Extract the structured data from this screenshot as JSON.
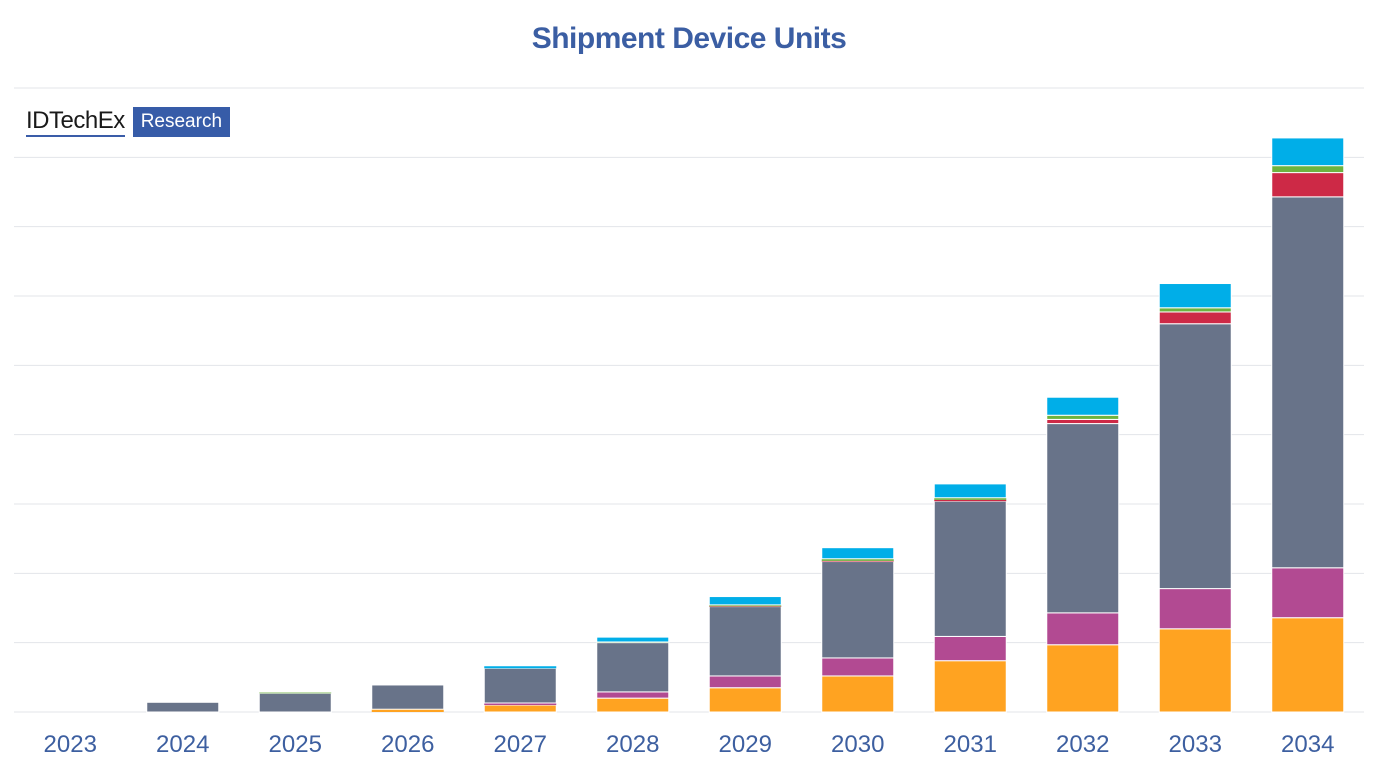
{
  "chart_data": {
    "type": "bar",
    "stacked": true,
    "title": "Shipment Device Units",
    "xlabel": "",
    "ylabel": "",
    "y_tick_labels_shown": false,
    "y_units_note": "no y-axis values printed; values read in gridline intervals",
    "ylim": [
      0,
      9
    ],
    "grid": true,
    "legend": "none",
    "categories": [
      "2023",
      "2024",
      "2025",
      "2026",
      "2027",
      "2028",
      "2029",
      "2030",
      "2031",
      "2032",
      "2033",
      "2034"
    ],
    "series": [
      {
        "color": "#ffa321",
        "values": [
          0,
          0,
          0,
          0.04,
          0.1,
          0.2,
          0.35,
          0.52,
          0.74,
          0.97,
          1.2,
          1.36
        ]
      },
      {
        "color": "#b24a92",
        "values": [
          0,
          0,
          0,
          0,
          0.03,
          0.09,
          0.17,
          0.26,
          0.35,
          0.46,
          0.58,
          0.72
        ]
      },
      {
        "color": "#687389",
        "values": [
          0,
          0.14,
          0.27,
          0.35,
          0.5,
          0.71,
          1.0,
          1.39,
          1.95,
          2.73,
          3.82,
          5.35
        ]
      },
      {
        "color": "#cd2946",
        "values": [
          0,
          0,
          0,
          0,
          0,
          0,
          0.005,
          0.01,
          0.02,
          0.06,
          0.17,
          0.35
        ]
      },
      {
        "color": "#6db33f",
        "values": [
          0,
          0,
          0.01,
          0,
          0,
          0.01,
          0.02,
          0.03,
          0.03,
          0.06,
          0.06,
          0.1
        ]
      },
      {
        "color": "#00aee8",
        "values": [
          0,
          0,
          0,
          0,
          0.03,
          0.07,
          0.12,
          0.16,
          0.2,
          0.26,
          0.35,
          0.4
        ]
      }
    ]
  },
  "logo": {
    "brand": "IDTechEx",
    "tag": "Research"
  },
  "colors": {
    "title": "#3b5ea3",
    "axis_labels": "#3d5fa0",
    "grid": "#e3e5ea"
  }
}
